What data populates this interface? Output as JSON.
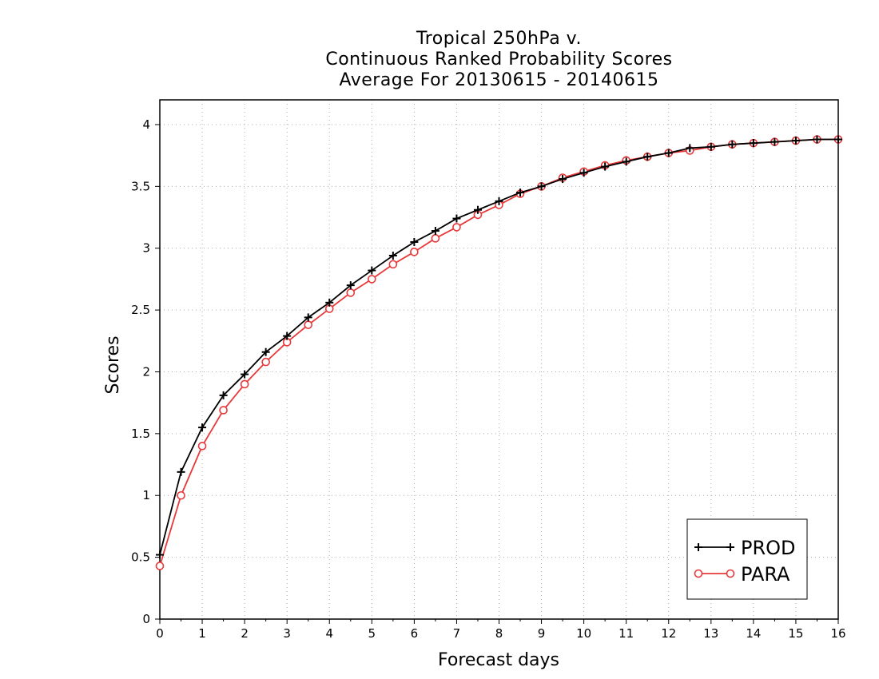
{
  "chart_data": {
    "type": "line",
    "title": [
      "Tropical 250hPa v.",
      "Continuous Ranked Probability Scores",
      "Average For 20130615 - 20140615"
    ],
    "xlabel": "Forecast days",
    "ylabel": "Scores",
    "xlim": [
      0,
      16
    ],
    "ylim": [
      0,
      4.2
    ],
    "xticks": [
      "0",
      "1",
      "2",
      "3",
      "4",
      "5",
      "6",
      "7",
      "8",
      "9",
      "10",
      "11",
      "12",
      "13",
      "14",
      "15",
      "16"
    ],
    "yticks": [
      "0",
      "0.5",
      "1",
      "1.5",
      "2",
      "2.5",
      "3",
      "3.5",
      "4"
    ],
    "grid": true,
    "legend_position": "bottom-right",
    "x": [
      0,
      0.5,
      1,
      1.5,
      2,
      2.5,
      3,
      3.5,
      4,
      4.5,
      5,
      5.5,
      6,
      6.5,
      7,
      7.5,
      8,
      8.5,
      9,
      9.5,
      10,
      10.5,
      11,
      11.5,
      12,
      12.5,
      13,
      13.5,
      14,
      14.5,
      15,
      15.5,
      16
    ],
    "series": [
      {
        "name": "PROD",
        "color": "#000000",
        "marker": "plus",
        "values": [
          0.52,
          1.19,
          1.55,
          1.81,
          1.98,
          2.16,
          2.29,
          2.44,
          2.56,
          2.7,
          2.82,
          2.94,
          3.05,
          3.14,
          3.24,
          3.31,
          3.38,
          3.45,
          3.5,
          3.56,
          3.61,
          3.66,
          3.7,
          3.74,
          3.77,
          3.81,
          3.82,
          3.84,
          3.85,
          3.86,
          3.87,
          3.88,
          3.88
        ]
      },
      {
        "name": "PARA",
        "color": "#e8393a",
        "marker": "circle",
        "values": [
          0.43,
          1.0,
          1.4,
          1.69,
          1.9,
          2.08,
          2.24,
          2.38,
          2.51,
          2.64,
          2.75,
          2.87,
          2.97,
          3.08,
          3.17,
          3.27,
          3.35,
          3.44,
          3.5,
          3.57,
          3.62,
          3.67,
          3.71,
          3.74,
          3.77,
          3.79,
          3.82,
          3.84,
          3.85,
          3.86,
          3.87,
          3.88,
          3.88
        ]
      }
    ]
  }
}
